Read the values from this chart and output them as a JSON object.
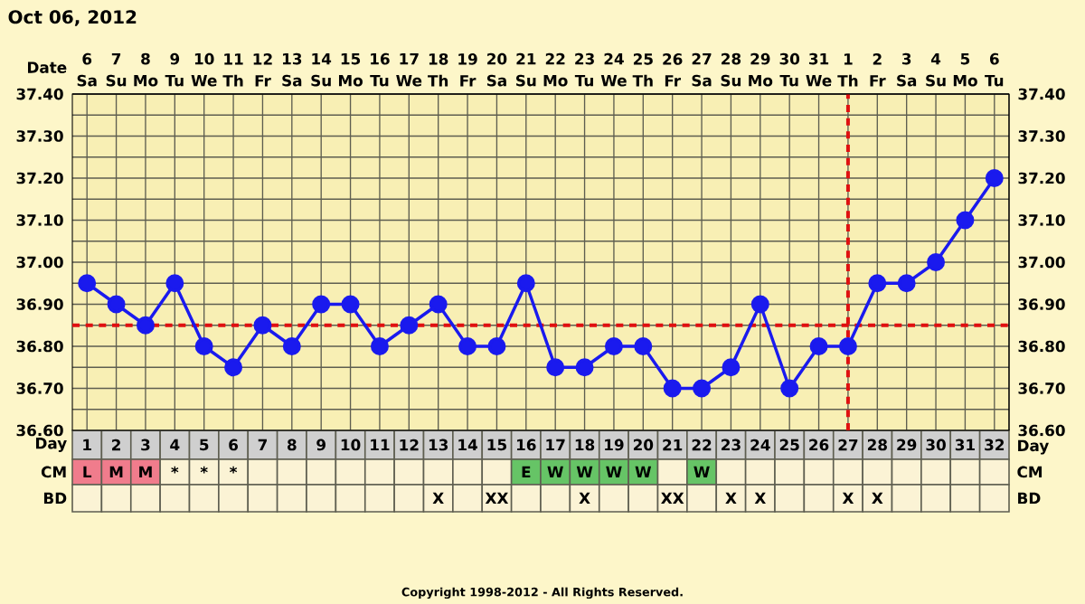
{
  "chart_data": [
    {
      "type": "line",
      "title": "Oct 06, 2012",
      "xlabel": "Day",
      "x2label": "Date",
      "x": [
        1,
        2,
        3,
        4,
        5,
        6,
        7,
        8,
        9,
        10,
        11,
        12,
        13,
        14,
        15,
        16,
        17,
        18,
        19,
        20,
        21,
        22,
        23,
        24,
        25,
        26,
        27,
        28,
        29,
        30,
        31,
        32
      ],
      "series": [
        {
          "color": "#1a1aee",
          "values": [
            36.95,
            36.9,
            36.85,
            36.95,
            36.8,
            36.75,
            36.85,
            36.8,
            36.9,
            36.9,
            36.8,
            36.85,
            36.9,
            36.8,
            36.8,
            36.95,
            36.75,
            36.75,
            36.8,
            36.8,
            36.7,
            36.7,
            36.75,
            36.9,
            36.7,
            36.8,
            36.8,
            36.95,
            36.95,
            37.0,
            37.1,
            37.2
          ]
        }
      ],
      "marker": "circle",
      "grid": true,
      "xlim": [
        0.5,
        32.5
      ],
      "xticks": [
        1,
        2,
        3,
        4,
        5,
        6,
        7,
        8,
        9,
        10,
        11,
        12,
        13,
        14,
        15,
        16,
        17,
        18,
        19,
        20,
        21,
        22,
        23,
        24,
        25,
        26,
        27,
        28,
        29,
        30,
        31,
        32
      ],
      "x2lim": [
        "2012-10-05T12:00",
        "2012-11-06T12:00"
      ],
      "x2ticks": [
        {
          "value": "2012-10-06",
          "label": "6 Sa"
        },
        {
          "value": "2012-10-07",
          "label": "7 Su"
        },
        {
          "value": "2012-10-08",
          "label": "8 Mo"
        },
        {
          "value": "2012-10-09",
          "label": "9 Tu"
        },
        {
          "value": "2012-10-10",
          "label": "10 We"
        },
        {
          "value": "2012-10-11",
          "label": "11 Th"
        },
        {
          "value": "2012-10-12",
          "label": "12 Fr"
        },
        {
          "value": "2012-10-13",
          "label": "13 Sa"
        },
        {
          "value": "2012-10-14",
          "label": "14 Su"
        },
        {
          "value": "2012-10-15",
          "label": "15 Mo"
        },
        {
          "value": "2012-10-16",
          "label": "16 Tu"
        },
        {
          "value": "2012-10-17",
          "label": "17 We"
        },
        {
          "value": "2012-10-18",
          "label": "18 Th"
        },
        {
          "value": "2012-10-19",
          "label": "19 Fr"
        },
        {
          "value": "2012-10-20",
          "label": "20 Sa"
        },
        {
          "value": "2012-10-21",
          "label": "21 Su"
        },
        {
          "value": "2012-10-22",
          "label": "22 Mo"
        },
        {
          "value": "2012-10-23",
          "label": "23 Tu"
        },
        {
          "value": "2012-10-24",
          "label": "24 We"
        },
        {
          "value": "2012-10-25",
          "label": "25 Th"
        },
        {
          "value": "2012-10-26",
          "label": "26 Fr"
        },
        {
          "value": "2012-10-27",
          "label": "27 Sa"
        },
        {
          "value": "2012-10-28",
          "label": "28 Su"
        },
        {
          "value": "2012-10-29",
          "label": "29 Mo"
        },
        {
          "value": "2012-10-30",
          "label": "30 Tu"
        },
        {
          "value": "2012-10-31",
          "label": "31 We"
        },
        {
          "value": "2012-11-01",
          "label": "1 Th"
        },
        {
          "value": "2012-11-02",
          "label": "2 Fr"
        },
        {
          "value": "2012-11-03",
          "label": "3 Sa"
        },
        {
          "value": "2012-11-04",
          "label": "4 Su"
        },
        {
          "value": "2012-11-05",
          "label": "5 Mo"
        },
        {
          "value": "2012-11-06",
          "label": "6 Tu"
        }
      ],
      "ylim": [
        36.6,
        37.4
      ],
      "yticks": [
        {
          "value": 36.6,
          "label": "36.60"
        },
        {
          "value": 36.7,
          "label": "36.70"
        },
        {
          "value": 36.8,
          "label": "36.80"
        },
        {
          "value": 36.9,
          "label": "36.90"
        },
        {
          "value": 37.0,
          "label": "37.00"
        },
        {
          "value": 37.1,
          "label": "37.10"
        },
        {
          "value": 37.2,
          "label": "37.20"
        },
        {
          "value": 37.3,
          "label": "37.30"
        },
        {
          "value": 37.4,
          "label": "37.40"
        }
      ],
      "y2lim": [
        36.6,
        37.4
      ],
      "y2ticks": [
        {
          "value": 36.6,
          "label": "36.60"
        },
        {
          "value": 36.7,
          "label": "36.70"
        },
        {
          "value": 36.8,
          "label": "36.80"
        },
        {
          "value": 36.9,
          "label": "36.90"
        },
        {
          "value": 37.0,
          "label": "37.00"
        },
        {
          "value": 37.1,
          "label": "37.10"
        },
        {
          "value": 37.2,
          "label": "37.20"
        },
        {
          "value": 37.3,
          "label": "37.30"
        },
        {
          "value": 37.4,
          "label": "37.40"
        }
      ],
      "ref_lines": [
        {
          "axis": "y",
          "value": 36.85,
          "color": "#e01010",
          "line_style": "dashed"
        },
        {
          "axis": "x",
          "value": 27,
          "color": "#e01010",
          "line_style": "dashed"
        }
      ],
      "annotations": [
        "Copyright 1998-2012 - All Rights Reserved."
      ]
    },
    {
      "type": "other",
      "ylabel": "CM",
      "y2label": "CM",
      "categories": [
        "L",
        "M",
        "M",
        "*",
        "*",
        "*",
        null,
        null,
        null,
        null,
        null,
        null,
        null,
        null,
        null,
        "E",
        "W",
        "W",
        "W",
        "W",
        null,
        "W",
        null,
        null,
        null,
        null,
        null,
        null,
        null,
        null,
        null,
        null
      ],
      "colors": [
        "#f07c8c",
        "#f07c8c",
        "#f07c8c",
        "#fbf3d5",
        "#fbf3d5",
        "#fbf3d5",
        "#fbf3d5",
        "#fbf3d5",
        "#fbf3d5",
        "#fbf3d5",
        "#fbf3d5",
        "#fbf3d5",
        "#fbf3d5",
        "#fbf3d5",
        "#fbf3d5",
        "#66c466",
        "#66c466",
        "#66c466",
        "#66c466",
        "#66c466",
        "#fbf3d5",
        "#66c466",
        "#fbf3d5",
        "#fbf3d5",
        "#fbf3d5",
        "#fbf3d5",
        "#fbf3d5",
        "#fbf3d5",
        "#fbf3d5",
        "#fbf3d5",
        "#fbf3d5",
        "#fbf3d5"
      ]
    },
    {
      "type": "other",
      "ylabel": "BD",
      "y2label": "BD",
      "categories": [
        null,
        null,
        null,
        null,
        null,
        null,
        null,
        null,
        null,
        null,
        null,
        null,
        "X",
        null,
        "XX",
        null,
        null,
        "X",
        null,
        null,
        "XX",
        null,
        "X",
        "X",
        null,
        null,
        "X",
        "X",
        null,
        null,
        null,
        null
      ],
      "colors": [
        "#fbf3d5",
        "#fbf3d5",
        "#fbf3d5",
        "#fbf3d5",
        "#fbf3d5",
        "#fbf3d5",
        "#fbf3d5",
        "#fbf3d5",
        "#fbf3d5",
        "#fbf3d5",
        "#fbf3d5",
        "#fbf3d5",
        "#fbf3d5",
        "#fbf3d5",
        "#fbf3d5",
        "#fbf3d5",
        "#fbf3d5",
        "#fbf3d5",
        "#fbf3d5",
        "#fbf3d5",
        "#fbf3d5",
        "#fbf3d5",
        "#fbf3d5",
        "#fbf3d5",
        "#fbf3d5",
        "#fbf3d5",
        "#fbf3d5",
        "#fbf3d5",
        "#fbf3d5",
        "#fbf3d5",
        "#fbf3d5",
        "#fbf3d5"
      ]
    }
  ]
}
